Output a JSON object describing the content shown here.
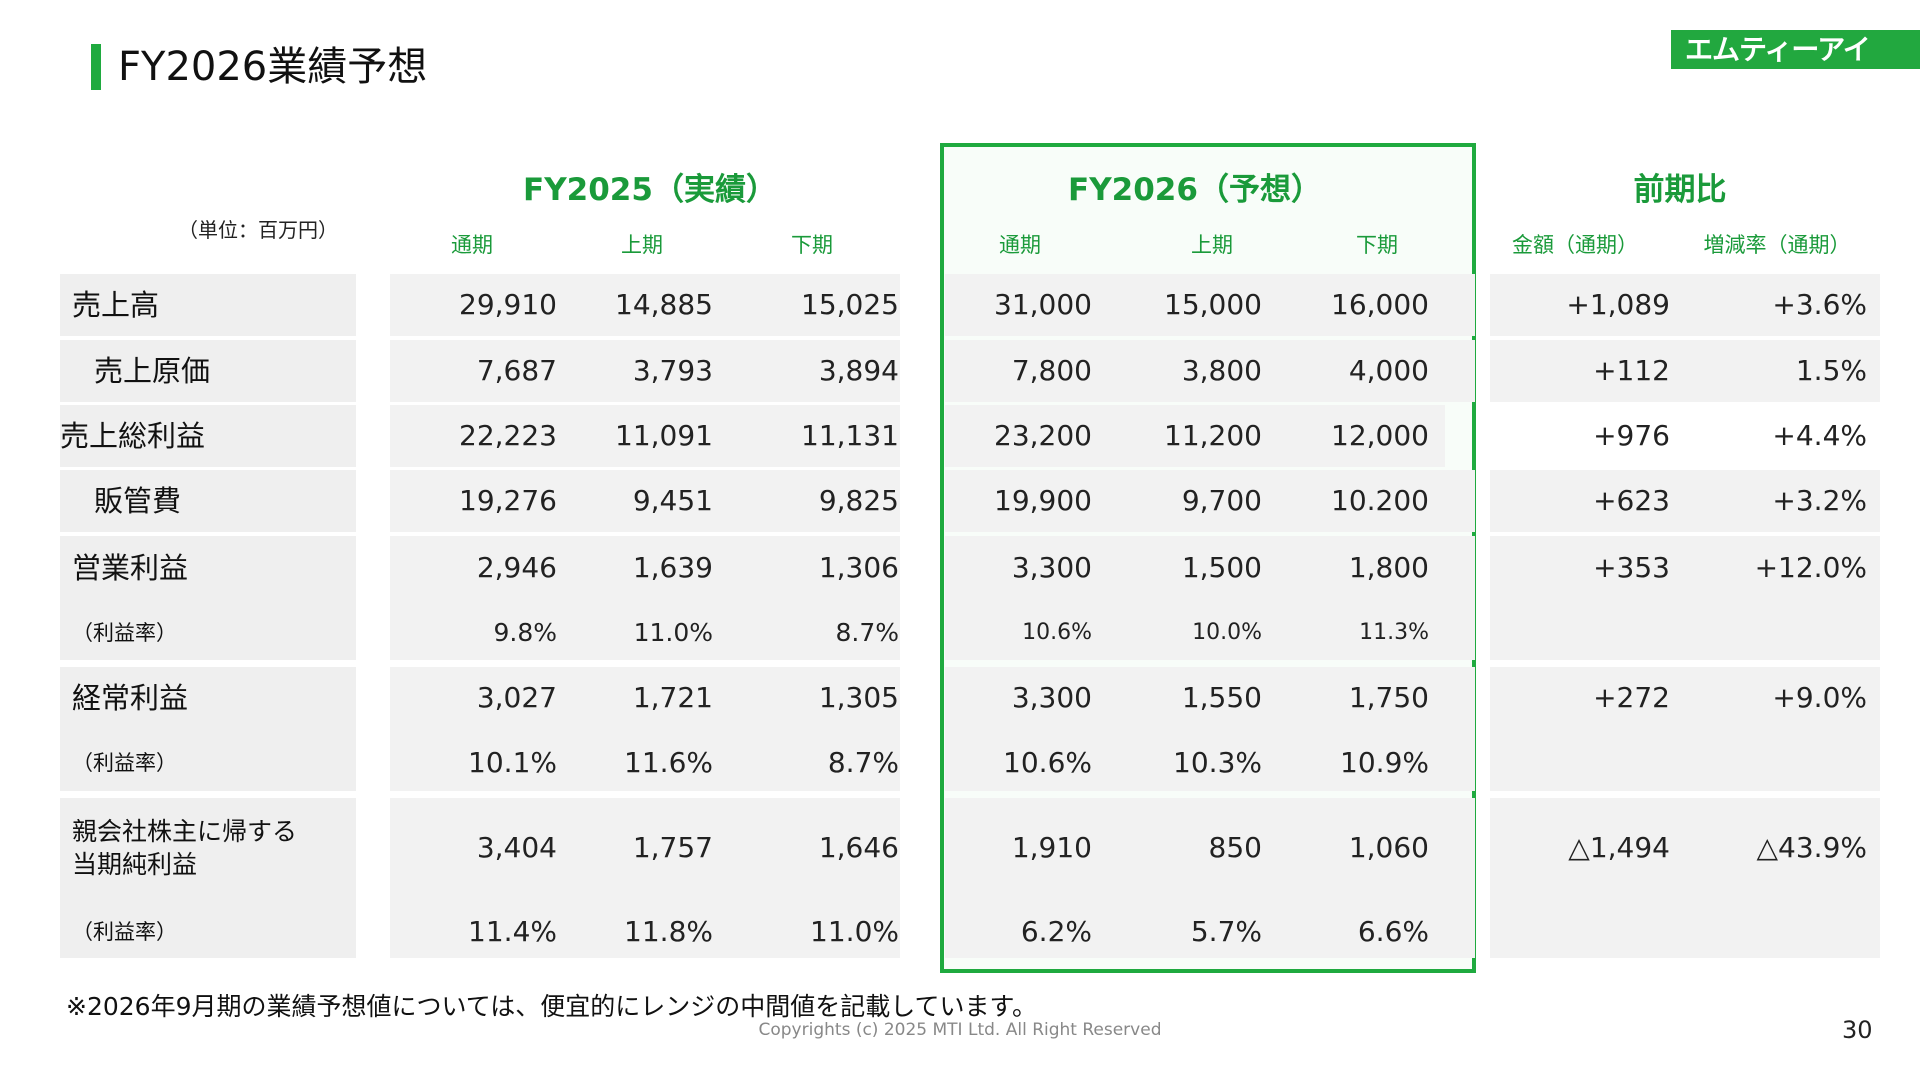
{
  "title": "FY2026業績予想",
  "logo_text": "エムティーアイ",
  "unit": "（単位：百万円）",
  "groups": {
    "fy2025": "FY2025（実績）",
    "fy2026": "FY2026（予想）",
    "yoy": "前期比"
  },
  "subheaders": [
    "通期",
    "上期",
    "下期",
    "通期",
    "上期",
    "下期",
    "金額（通期）",
    "増減率（通期）"
  ],
  "rows": [
    {
      "label": "売上高",
      "values": [
        "29,910",
        "14,885",
        "15,025",
        "31,000",
        "15,000",
        "16,000",
        "+1,089",
        "+3.6%"
      ]
    },
    {
      "label": "売上原価",
      "values": [
        "7,687",
        "3,793",
        "3,894",
        "7,800",
        "3,800",
        "4,000",
        "+112",
        "1.5%"
      ]
    },
    {
      "label": "売上総利益",
      "values": [
        "22,223",
        "11,091",
        "11,131",
        "23,200",
        "11,200",
        "12,000",
        "+976",
        "+4.4%"
      ]
    },
    {
      "label": "販管費",
      "values": [
        "19,276",
        "9,451",
        "9,825",
        "19,900",
        "9,700",
        "10.200",
        "+623",
        "+3.2%"
      ]
    },
    {
      "label": "営業利益",
      "values": [
        "2,946",
        "1,639",
        "1,306",
        "3,300",
        "1,500",
        "1,800",
        "+353",
        "+12.0%"
      ]
    },
    {
      "label": "（利益率）",
      "values": [
        "9.8%",
        "11.0%",
        "8.7%",
        "10.6%",
        "10.0%",
        "11.3%",
        "",
        ""
      ]
    },
    {
      "label": "経常利益",
      "values": [
        "3,027",
        "1,721",
        "1,305",
        "3,300",
        "1,550",
        "1,750",
        "+272",
        "+9.0%"
      ]
    },
    {
      "label": "（利益率）",
      "values": [
        "10.1%",
        "11.6%",
        "8.7%",
        "10.6%",
        "10.3%",
        "10.9%",
        "",
        ""
      ]
    },
    {
      "label": "親会社株主に帰する\n当期純利益",
      "values": [
        "3,404",
        "1,757",
        "1,646",
        "1,910",
        "850",
        "1,060",
        "△1,494",
        "△43.9%"
      ]
    },
    {
      "label": "（利益率）",
      "values": [
        "11.4%",
        "11.8%",
        "11.0%",
        "6.2%",
        "5.7%",
        "6.6%",
        "",
        ""
      ]
    }
  ],
  "note": "※2026年9月期の業績予想値については、便宜的にレンジの中間値を記載しています。",
  "copyright": "Copyrights (c) 2025 MTI Ltd. All Right Reserved",
  "page_number": "30"
}
